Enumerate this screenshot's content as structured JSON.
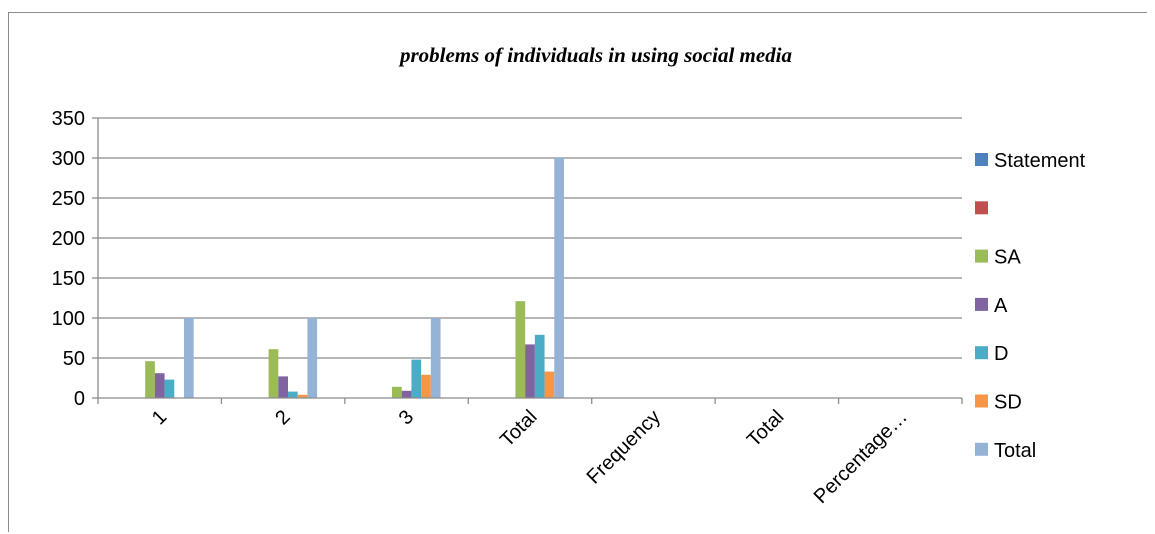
{
  "chart_data": {
    "type": "bar",
    "title": "problems of individuals in using social media",
    "categories": [
      "1",
      "2",
      "3",
      "Total",
      "Frequency",
      "Total",
      "Percentage…"
    ],
    "ylim": [
      0,
      350
    ],
    "yticks": [
      0,
      50,
      100,
      150,
      200,
      250,
      300,
      350
    ],
    "grid": true,
    "legend_position": "right",
    "series": [
      {
        "name": "Statement",
        "color": "#4f81bd",
        "values": [
          0,
          0,
          0,
          0,
          0,
          0,
          0
        ]
      },
      {
        "name": "",
        "color": "#c0504d",
        "values": [
          0,
          0,
          0,
          0,
          0,
          0,
          0
        ]
      },
      {
        "name": "SA",
        "color": "#9bbb59",
        "values": [
          46,
          61,
          14,
          121,
          0,
          0,
          0
        ]
      },
      {
        "name": "A",
        "color": "#8064a2",
        "values": [
          31,
          27,
          9,
          67,
          0,
          0,
          0
        ]
      },
      {
        "name": "D",
        "color": "#4bacc6",
        "values": [
          23,
          8,
          48,
          79,
          0,
          0,
          0
        ]
      },
      {
        "name": "SD",
        "color": "#f79646",
        "values": [
          0,
          4,
          29,
          33,
          0,
          0,
          0
        ]
      },
      {
        "name": "Total",
        "color": "#95b3d7",
        "values": [
          100,
          100,
          100,
          300,
          0,
          0,
          0
        ]
      }
    ]
  }
}
